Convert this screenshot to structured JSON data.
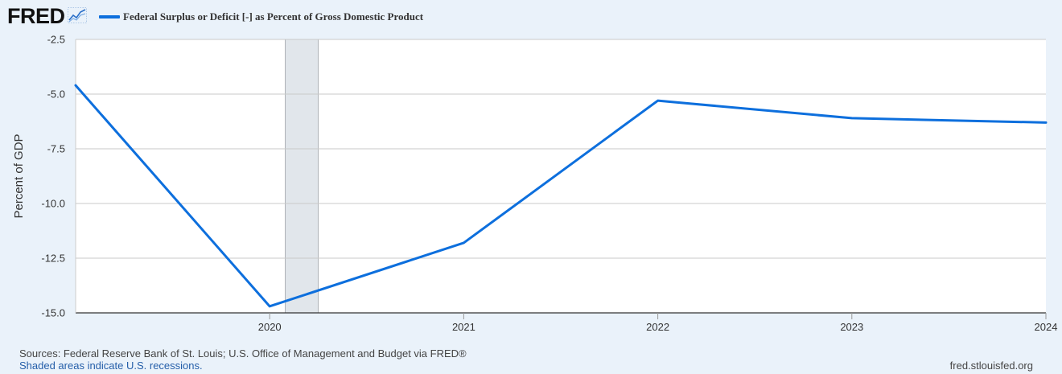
{
  "header": {
    "logo_text": "FRED",
    "logo_icon": "chart-line-icon",
    "legend_label": "Federal Surplus or Deficit [-] as Percent of Gross Domestic Product",
    "series_color": "#0d6fdd"
  },
  "chart_data": {
    "type": "line",
    "title": "Federal Surplus or Deficit [-] as Percent of Gross Domestic Product",
    "xlabel": "",
    "ylabel": "Percent of GDP",
    "ylim": [
      -15.0,
      -2.5
    ],
    "xlim": [
      2019.0,
      2024.0
    ],
    "yticks": [
      -2.5,
      -5.0,
      -7.5,
      -10.0,
      -12.5,
      -15.0
    ],
    "ytick_labels": [
      "-2.5",
      "-5.0",
      "-7.5",
      "-10.0",
      "-12.5",
      "-15.0"
    ],
    "xticks": [
      2020,
      2021,
      2022,
      2023,
      2024
    ],
    "xtick_labels": [
      "2020",
      "2021",
      "2022",
      "2023",
      "2024"
    ],
    "grid": true,
    "series": [
      {
        "name": "Federal Surplus or Deficit [-] as Percent of Gross Domestic Product",
        "color": "#0d6fdd",
        "x": [
          2019,
          2020,
          2021,
          2022,
          2023,
          2024
        ],
        "values": [
          -4.6,
          -14.7,
          -11.8,
          -5.3,
          -6.1,
          -6.3
        ]
      }
    ],
    "recessions": [
      {
        "start": 2020.08,
        "end": 2020.25
      }
    ]
  },
  "footer": {
    "sources": "Sources: Federal Reserve Bank of St. Louis; U.S. Office of Management and Budget via FRED®",
    "recession_note": "Shaded areas indicate U.S. recessions.",
    "site": "fred.stlouisfed.org"
  }
}
